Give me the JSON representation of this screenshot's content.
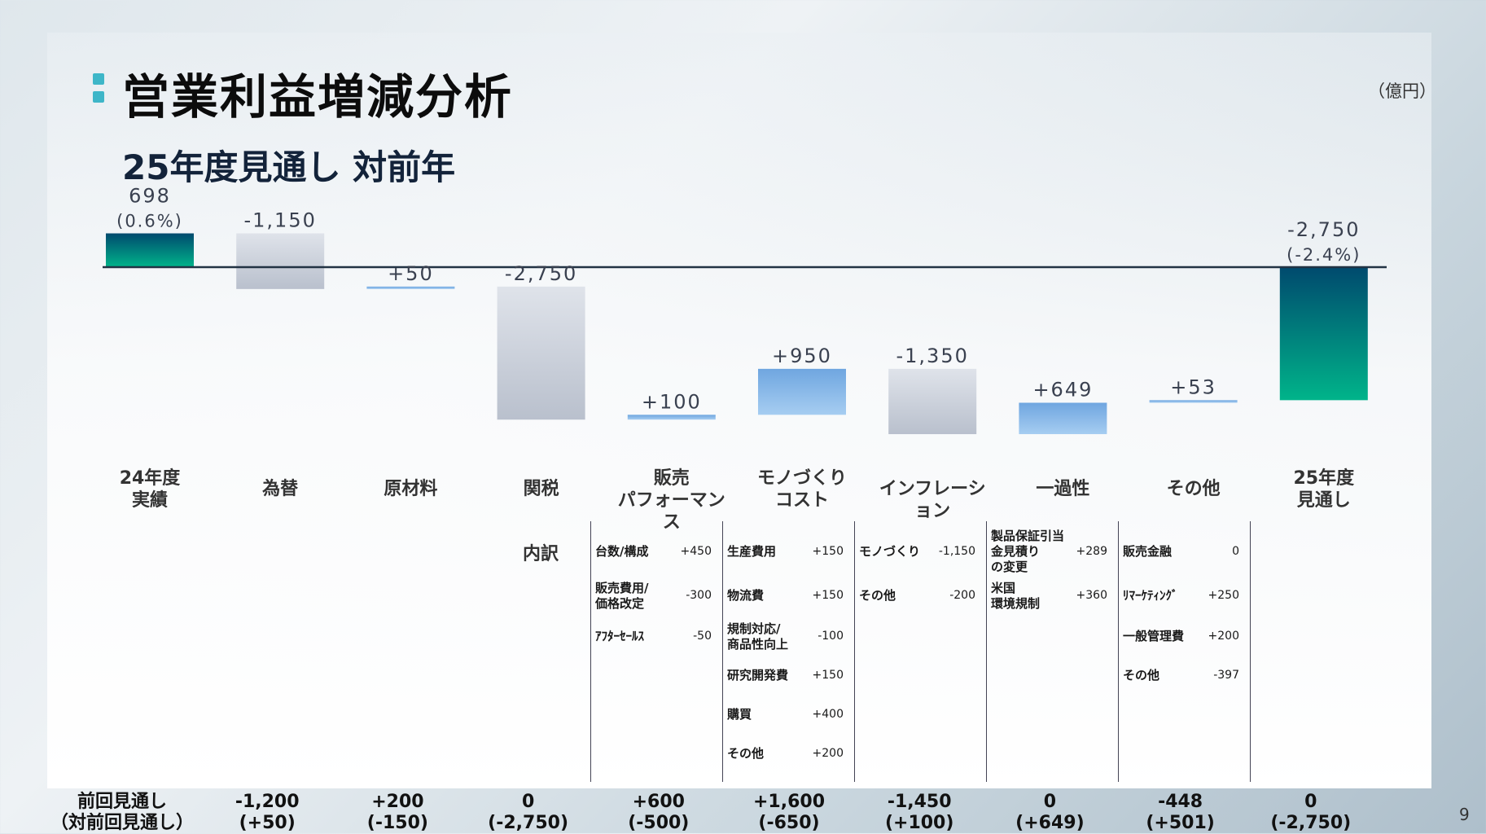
{
  "page": {
    "title": "営業利益増減分析",
    "subtitle": "25年度見通し 対前年",
    "unit": "（億円）",
    "page_number": "9"
  },
  "colors": {
    "accent": "#3eb6c8",
    "start_bar_top": "#004a6e",
    "start_bar_bottom": "#00b48a",
    "negative_bar": "#c4cad6",
    "positive_bar": "#7fb2e6",
    "baseline": "#223344"
  },
  "chart_data": {
    "type": "bar",
    "subtype": "waterfall",
    "categories": [
      {
        "label": [
          "24年度",
          "実績"
        ]
      },
      {
        "label": [
          "為替"
        ]
      },
      {
        "label": [
          "原材料"
        ]
      },
      {
        "label": [
          "関税"
        ]
      },
      {
        "label": [
          "販売",
          "パフォーマンス"
        ]
      },
      {
        "label": [
          "モノづくり",
          "コスト"
        ]
      },
      {
        "label": [
          "インフレーション"
        ]
      },
      {
        "label": [
          "一過性"
        ]
      },
      {
        "label": [
          "その他"
        ]
      },
      {
        "label": [
          "25年度",
          "見通し"
        ]
      }
    ],
    "bars": [
      {
        "kind": "total",
        "value": 698,
        "labels": [
          "698",
          "(0.6%)"
        ]
      },
      {
        "kind": "delta",
        "value": -1150,
        "labels": [
          "-1,150"
        ]
      },
      {
        "kind": "delta",
        "value": 50,
        "labels": [
          "+50"
        ]
      },
      {
        "kind": "delta",
        "value": -2750,
        "labels": [
          "-2,750"
        ]
      },
      {
        "kind": "delta",
        "value": 100,
        "labels": [
          "+100"
        ]
      },
      {
        "kind": "delta",
        "value": 950,
        "labels": [
          "+950"
        ]
      },
      {
        "kind": "delta",
        "value": -1350,
        "labels": [
          "-1,350"
        ]
      },
      {
        "kind": "delta",
        "value": 649,
        "labels": [
          "+649"
        ]
      },
      {
        "kind": "delta",
        "value": 53,
        "labels": [
          "+53"
        ]
      },
      {
        "kind": "total",
        "value": -2750,
        "labels": [
          "-2,750",
          "(-2.4%)"
        ]
      }
    ],
    "ylim": [
      -3700,
      1000
    ]
  },
  "breakdown": {
    "label": "内訳",
    "columns": [
      {
        "items": [
          {
            "label": [
              "台数/構成"
            ],
            "value": "+450"
          },
          {
            "label": [
              "販売費用/",
              "価格改定"
            ],
            "value": "-300"
          },
          {
            "label": [
              "ｱﾌﾀｰｾｰﾙｽ"
            ],
            "value": "-50"
          }
        ]
      },
      {
        "items": [
          {
            "label": [
              "生産費用"
            ],
            "value": "+150"
          },
          {
            "label": [
              "物流費"
            ],
            "value": "+150"
          },
          {
            "label": [
              "規制対応/",
              "商品性向上"
            ],
            "value": "-100"
          },
          {
            "label": [
              "研究開発費"
            ],
            "value": "+150"
          },
          {
            "label": [
              "購買"
            ],
            "value": "+400"
          },
          {
            "label": [
              "その他"
            ],
            "value": "+200"
          }
        ]
      },
      {
        "items": [
          {
            "label": [
              "モノづくり"
            ],
            "value": "-1,150"
          },
          {
            "label": [
              "その他"
            ],
            "value": "-200"
          }
        ]
      },
      {
        "items": [
          {
            "label": [
              "製品保証引当",
              "金見積り",
              "の変更"
            ],
            "value": "+289"
          },
          {
            "label": [
              "米国",
              "環境規制"
            ],
            "value": "+360"
          }
        ]
      },
      {
        "items": [
          {
            "label": [
              "販売金融"
            ],
            "value": "0"
          },
          {
            "label": [
              "ﾘﾏｰｹﾃｨﾝｸﾞ"
            ],
            "value": "+250"
          },
          {
            "label": [
              "一般管理費"
            ],
            "value": "+200"
          },
          {
            "label": [
              "その他"
            ],
            "value": "-397"
          }
        ]
      }
    ]
  },
  "previous": {
    "label": [
      "前回見通し",
      "（対前回見通し）"
    ],
    "values": [
      [
        "-1,200",
        "(+50)"
      ],
      [
        "+200",
        "(-150)"
      ],
      [
        "0",
        "(-2,750)"
      ],
      [
        "+600",
        "(-500)"
      ],
      [
        "+1,600",
        "(-650)"
      ],
      [
        "-1,450",
        "(+100)"
      ],
      [
        "0",
        "(+649)"
      ],
      [
        "-448",
        "(+501)"
      ],
      [
        "0",
        "(-2,750)"
      ]
    ]
  }
}
